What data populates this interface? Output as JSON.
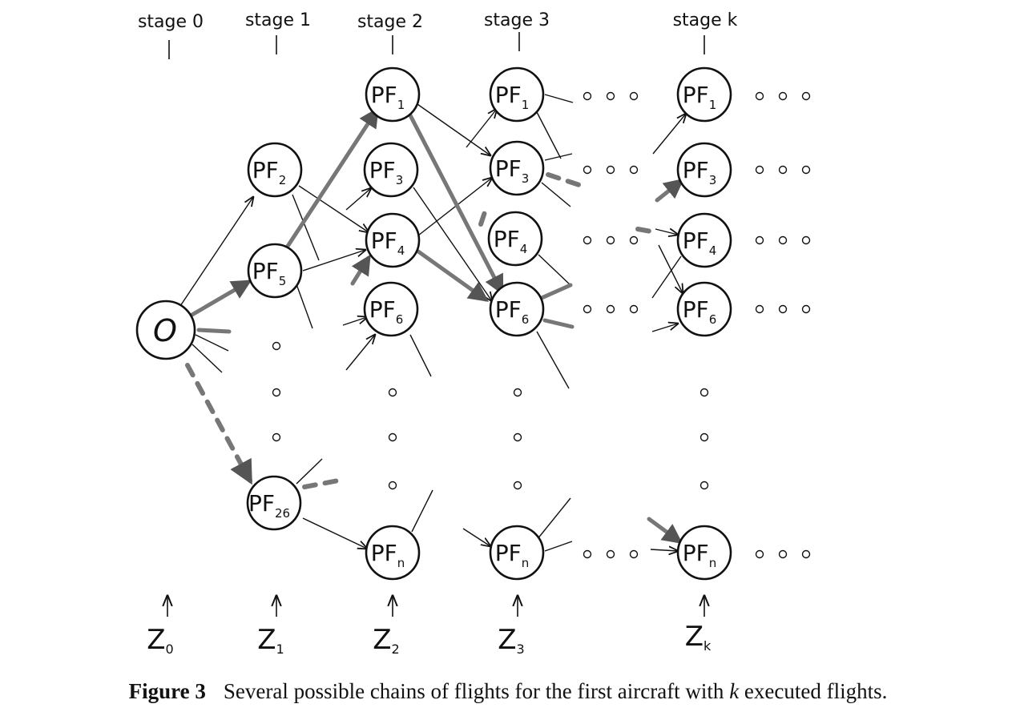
{
  "stages": [
    "stage 0",
    "stage 1",
    "stage 2",
    "stage 3",
    "stage k"
  ],
  "origin": "O",
  "node_prefix": "PF",
  "columns": [
    {
      "stage": 1,
      "nodes": [
        "2",
        "5",
        "26"
      ]
    },
    {
      "stage": 2,
      "nodes": [
        "1",
        "3",
        "4",
        "6",
        "n"
      ]
    },
    {
      "stage": 3,
      "nodes": [
        "1",
        "3",
        "4",
        "6",
        "n"
      ]
    },
    {
      "stage": "k",
      "nodes": [
        "1",
        "3",
        "4",
        "6",
        "n"
      ]
    }
  ],
  "states": [
    {
      "letter": "Z",
      "sub": "0"
    },
    {
      "letter": "Z",
      "sub": "1"
    },
    {
      "letter": "Z",
      "sub": "2"
    },
    {
      "letter": "Z",
      "sub": "3"
    },
    {
      "letter": "Z",
      "sub": "k"
    }
  ],
  "caption": {
    "label": "Figure 3",
    "text_before": "Several possible chains of flights for the first aircraft with ",
    "var": "k",
    "text_after": " executed flights."
  }
}
